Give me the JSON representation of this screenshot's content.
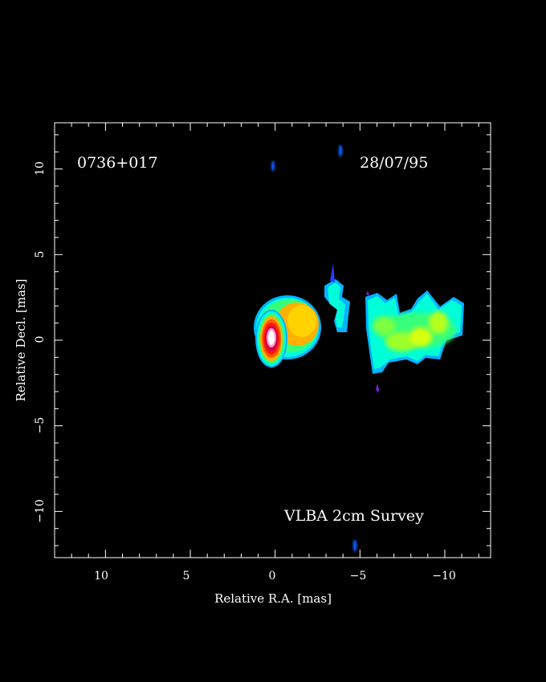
{
  "image": {
    "source_name": "0736+017",
    "date": "28/07/95",
    "survey": "VLBA 2cm Survey",
    "xlabel": "Relative R.A. [mas]",
    "ylabel": "Relative Decl. [mas]",
    "x_ticks": [
      "10",
      "5",
      "0",
      "−5",
      "−10"
    ],
    "y_ticks": [
      "10",
      "5",
      "0",
      "−5",
      "−10"
    ],
    "xlim": [
      13,
      -12.7
    ],
    "ylim": [
      -12.7,
      12.7
    ],
    "background": "#000000",
    "colormap": [
      "#0a35ff",
      "#00b4ff",
      "#00ffd8",
      "#38ff7a",
      "#b6ff1c",
      "#ffe800",
      "#ff9800",
      "#ff2a00",
      "#d00050",
      "#ffffff"
    ]
  }
}
